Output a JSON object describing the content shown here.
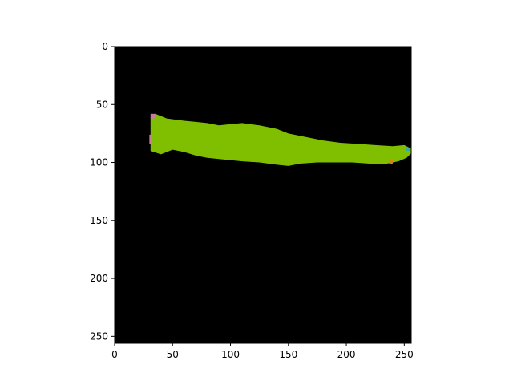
{
  "chart_data": {
    "type": "heatmap",
    "title": "",
    "xlabel": "",
    "ylabel": "",
    "x_range": [
      0,
      256
    ],
    "y_range": [
      256,
      0
    ],
    "y_axis_inverted": true,
    "x_ticks": [
      0,
      50,
      100,
      150,
      200,
      250
    ],
    "y_ticks": [
      0,
      50,
      100,
      150,
      200,
      250
    ],
    "x_tick_labels": [
      "0",
      "50",
      "100",
      "150",
      "200",
      "250"
    ],
    "y_tick_labels": [
      "0",
      "50",
      "100",
      "150",
      "200",
      "250"
    ],
    "grid": false,
    "legend": "none",
    "colors": {
      "background": "#000000",
      "mask": "#7fbf00",
      "edge_pink": "#c77ca0",
      "edge_orange": "#d9821e",
      "edge_blue": "#2aa7c4"
    },
    "mask_extent": {
      "x_start": 31,
      "x_end": 256,
      "top_profile": [
        [
          31,
          61
        ],
        [
          35,
          58
        ],
        [
          45,
          62
        ],
        [
          60,
          64
        ],
        [
          70,
          65
        ],
        [
          80,
          66
        ],
        [
          90,
          68
        ],
        [
          100,
          67
        ],
        [
          110,
          66
        ],
        [
          125,
          68
        ],
        [
          140,
          71
        ],
        [
          150,
          75
        ],
        [
          165,
          78
        ],
        [
          180,
          81
        ],
        [
          195,
          83
        ],
        [
          210,
          84
        ],
        [
          225,
          85
        ],
        [
          240,
          86
        ],
        [
          250,
          85
        ],
        [
          256,
          88
        ]
      ],
      "bottom_profile": [
        [
          31,
          90
        ],
        [
          40,
          93
        ],
        [
          50,
          89
        ],
        [
          60,
          91
        ],
        [
          70,
          94
        ],
        [
          80,
          96
        ],
        [
          90,
          97
        ],
        [
          100,
          98
        ],
        [
          110,
          99
        ],
        [
          125,
          100
        ],
        [
          140,
          102
        ],
        [
          150,
          103
        ],
        [
          160,
          101
        ],
        [
          175,
          100
        ],
        [
          190,
          100
        ],
        [
          205,
          100
        ],
        [
          220,
          101
        ],
        [
          235,
          101
        ],
        [
          245,
          99
        ],
        [
          252,
          96
        ],
        [
          256,
          92
        ]
      ]
    }
  }
}
